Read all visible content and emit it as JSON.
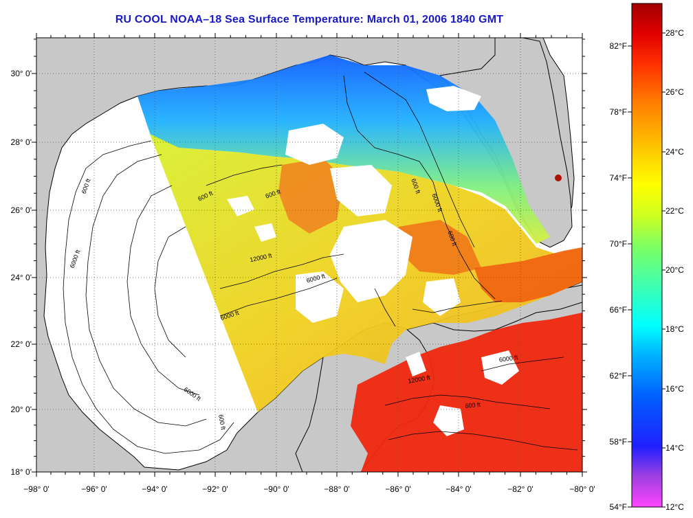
{
  "title": "RU COOL  NOAA–18  Sea Surface Temperature:  March 01, 2006 1840 GMT",
  "map": {
    "lon_ticks": [
      "−98° 0'",
      "−96° 0'",
      "−94° 0'",
      "−92° 0'",
      "−90° 0'",
      "−88° 0'",
      "−86° 0'",
      "−84° 0'",
      "−82° 0'",
      "−80° 0'"
    ],
    "lat_ticks": [
      "30° 0'",
      "28° 0'",
      "26° 0'",
      "24° 0'",
      "22° 0'",
      "20° 0'",
      "18° 0'"
    ],
    "fahrenheit_ticks": [
      "82°F",
      "78°F",
      "74°F",
      "70°F",
      "66°F",
      "62°F",
      "58°F",
      "54°F"
    ],
    "contour_labels": [
      "600 ft",
      "6000 ft",
      "12000 ft",
      "600 ft",
      "6000 ft",
      "600 ft",
      "6000 ft",
      "600 ft",
      "6000 ft",
      "600 ft",
      "12000 ft",
      "6000 ft",
      "600 ft",
      "6000 ft",
      "600 ft"
    ]
  },
  "colorbar": {
    "celsius_ticks": [
      "28°C",
      "26°C",
      "24°C",
      "22°C",
      "20°C",
      "18°C",
      "16°C",
      "14°C",
      "12°C"
    ],
    "colors": [
      "#ff44ff",
      "#a040e0",
      "#2020ff",
      "#0060ff",
      "#00b0ff",
      "#00ffff",
      "#40ffb0",
      "#80ff60",
      "#d0ff20",
      "#ffff00",
      "#ffc000",
      "#ff8000",
      "#ff3000",
      "#e00000",
      "#a00000"
    ]
  },
  "colors": {
    "title": "#1818c8",
    "land": "#c8c8c8",
    "no_data": "#ffffff"
  }
}
